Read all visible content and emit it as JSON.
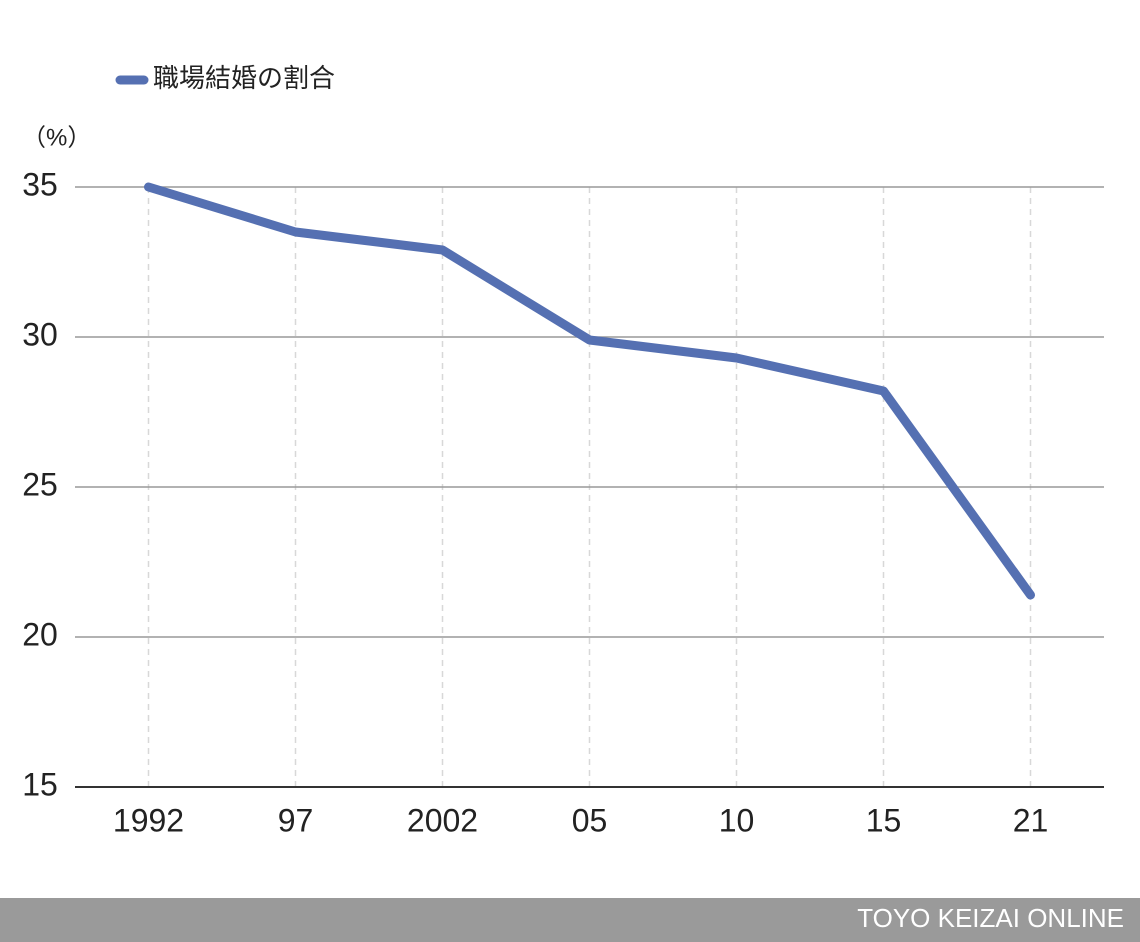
{
  "chart_data": {
    "type": "line",
    "y_label": "（%）",
    "categories": [
      "1992",
      "97",
      "2002",
      "05",
      "10",
      "15",
      "21"
    ],
    "series": [
      {
        "name": "職場結婚の割合",
        "color": "#5570b2",
        "values": [
          35.0,
          33.5,
          32.9,
          29.9,
          29.3,
          28.2,
          21.4
        ]
      }
    ],
    "ylim": [
      15,
      35
    ],
    "yticks": [
      15,
      20,
      25,
      30,
      35
    ],
    "grid": true
  },
  "footer": "TOYO KEIZAI ONLINE"
}
